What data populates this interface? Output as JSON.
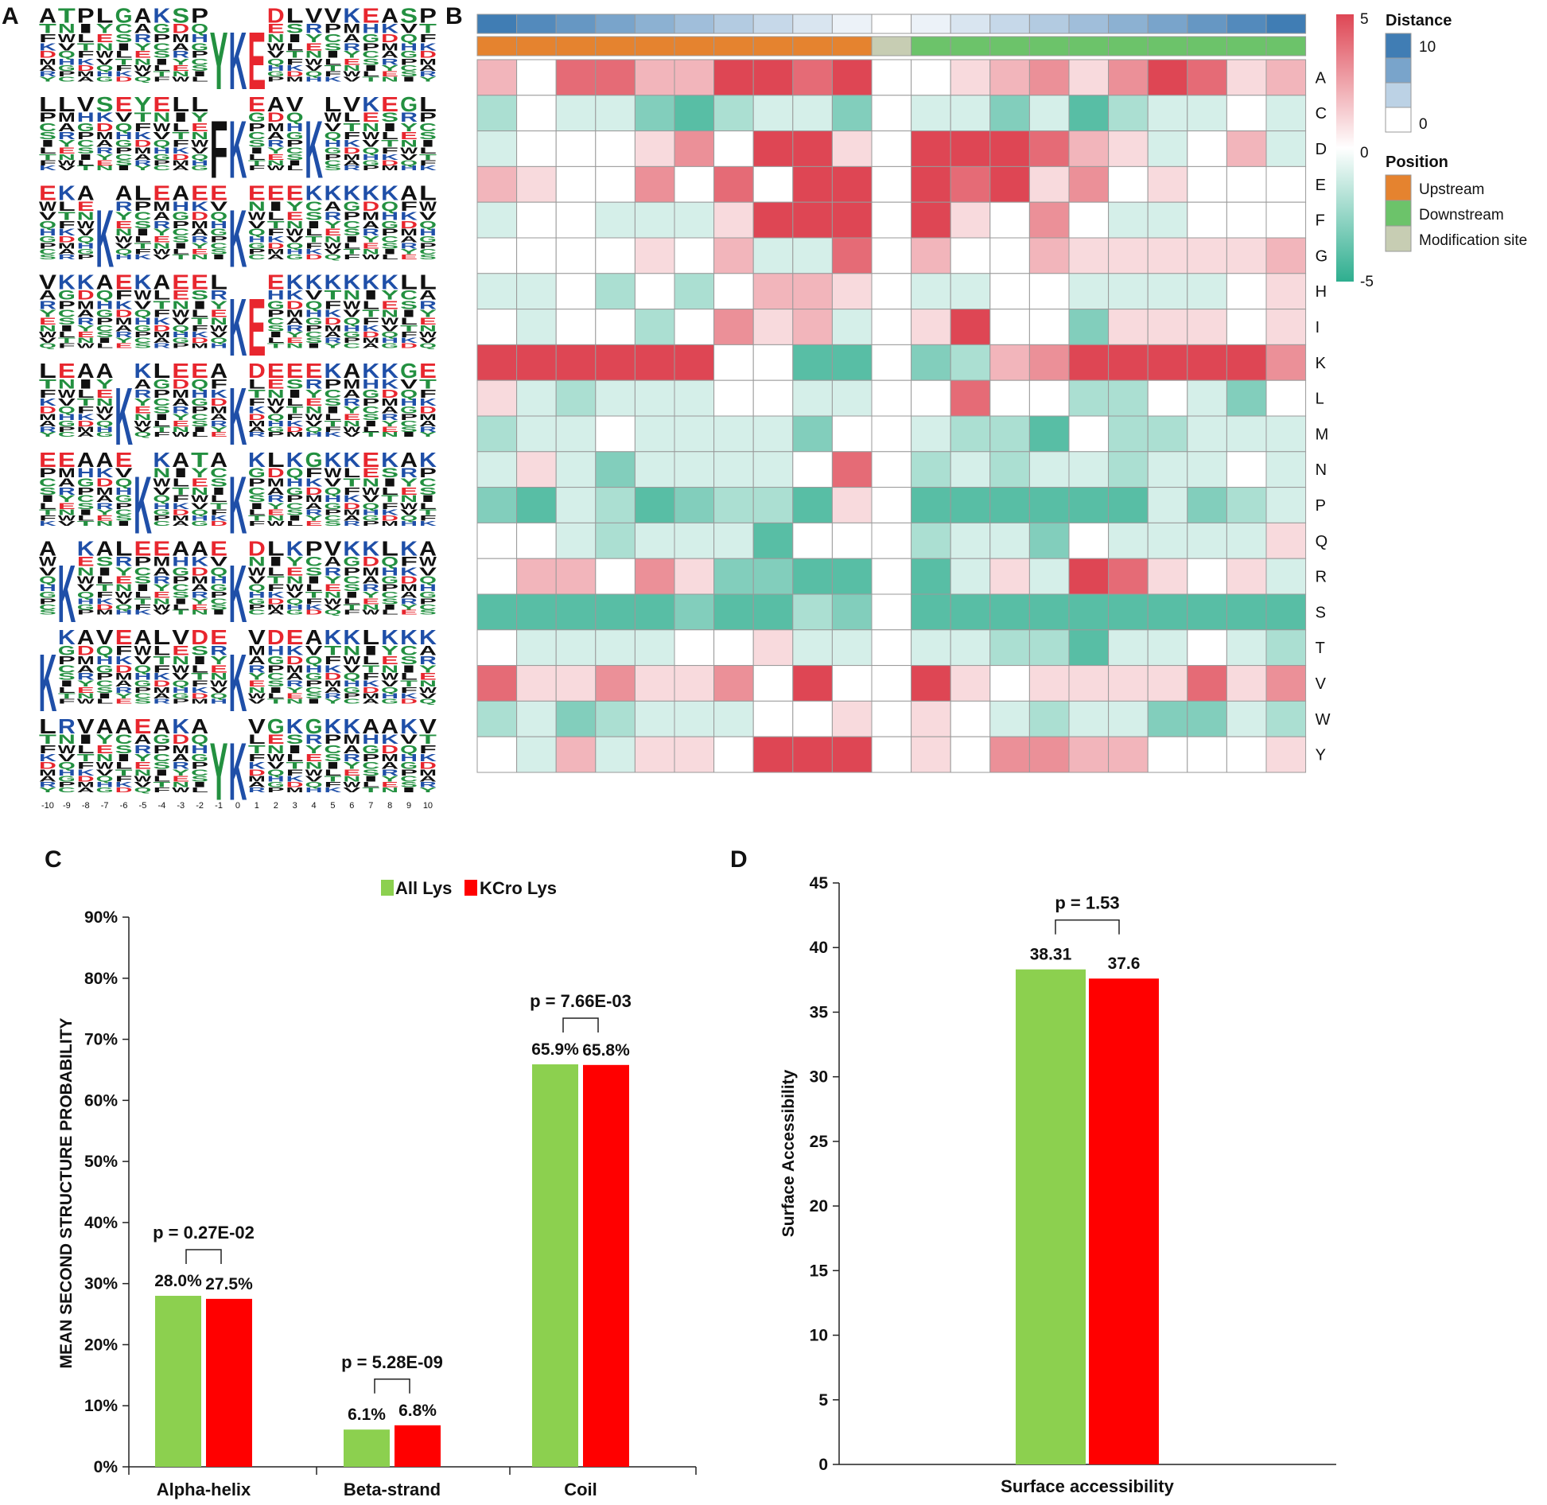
{
  "panels": {
    "A": "A",
    "B": "B",
    "C": "C",
    "D": "D"
  },
  "colors": {
    "green": "#8cd04f",
    "red": "#ff0000",
    "upstream": "#e5832f",
    "downstream": "#6cc36a",
    "modsite": "#c7cdb3",
    "teal": "#2eae8f",
    "heatred": "#de4654"
  },
  "chart_data": [
    {
      "panel": "A",
      "type": "sequence_logo",
      "x_ticks": [
        "-10",
        "-9",
        "-8",
        "-7",
        "-6",
        "-5",
        "-4",
        "-3",
        "-2",
        "-1",
        "0",
        "1",
        "2",
        "3",
        "4",
        "5",
        "6",
        "7",
        "8",
        "9",
        "10"
      ],
      "motifs": [
        {
          "top": "ATPLGAKSPVKEDLVVKEASP",
          "big": [
            9,
            10,
            11
          ],
          "big_letters": [
            "Y",
            "K",
            "E"
          ]
        },
        {
          "top": "LLVSEYELLFKEAVPLVKEG",
          "big": [
            9,
            10,
            14
          ],
          "big_letters": [
            "F",
            "K",
            "K"
          ]
        },
        {
          "top": "EKAKALEAEEKEEEKKKKKA",
          "big": [
            3,
            10
          ],
          "big_letters": [
            "K",
            "K"
          ]
        },
        {
          "top": "VKKAEKAEELEEEKKKKKKL",
          "big": [
            10,
            11
          ],
          "big_letters": [
            "K",
            "E"
          ]
        },
        {
          "top": "LEAALKLEEAKDEEEKAKKGE",
          "big": [
            4,
            10
          ],
          "big_letters": [
            "K",
            "K"
          ]
        },
        {
          "top": "EEAAEKKATAEKLKGKKEKAK",
          "big": [
            5,
            10
          ],
          "big_letters": [
            "K",
            "K"
          ]
        },
        {
          "top": "AEKALEEAAEKDLKPVKKLKA",
          "big": [
            1,
            10
          ],
          "big_letters": [
            "K",
            "K"
          ]
        },
        {
          "top": "AKAVEALVDEKVDEAKKLKKK",
          "big": [
            0,
            10
          ],
          "big_letters": [
            "K",
            "K"
          ]
        },
        {
          "top": "LRVAAEAKAYKVGKGKKAAKV",
          "big": [
            9,
            10
          ],
          "big_letters": [
            "Y",
            "K"
          ]
        }
      ]
    },
    {
      "panel": "B",
      "type": "heatmap",
      "rows": [
        "A",
        "C",
        "D",
        "E",
        "F",
        "G",
        "H",
        "I",
        "K",
        "L",
        "M",
        "N",
        "P",
        "Q",
        "R",
        "S",
        "T",
        "V",
        "W",
        "Y"
      ],
      "positions": [
        -10,
        -9,
        -8,
        -7,
        -6,
        -5,
        -4,
        -3,
        -2,
        -1,
        0,
        1,
        2,
        3,
        4,
        5,
        6,
        7,
        8,
        9,
        10
      ],
      "distance": [
        10,
        9,
        8,
        7,
        6,
        5,
        4,
        3,
        2,
        1,
        0,
        1,
        2,
        3,
        4,
        5,
        6,
        7,
        8,
        9,
        10
      ],
      "position_class": [
        "Upstream",
        "Upstream",
        "Upstream",
        "Upstream",
        "Upstream",
        "Upstream",
        "Upstream",
        "Upstream",
        "Upstream",
        "Upstream",
        "Modification site",
        "Downstream",
        "Downstream",
        "Downstream",
        "Downstream",
        "Downstream",
        "Downstream",
        "Downstream",
        "Downstream",
        "Downstream",
        "Downstream"
      ],
      "values": [
        [
          2,
          0,
          4,
          4,
          2,
          2,
          5,
          5,
          4,
          5,
          0,
          0,
          1,
          2,
          3,
          1,
          3,
          5,
          4,
          1,
          2
        ],
        [
          -2,
          0,
          -1,
          -1,
          -3,
          -4,
          -2,
          -1,
          -1,
          -3,
          0,
          -1,
          -1,
          -3,
          -1,
          -4,
          -2,
          -1,
          -1,
          0,
          -1
        ],
        [
          -1,
          0,
          0,
          0,
          1,
          3,
          0,
          5,
          5,
          1,
          0,
          5,
          5,
          5,
          4,
          2,
          1,
          -1,
          0,
          2,
          -1
        ],
        [
          2,
          1,
          0,
          0,
          3,
          0,
          4,
          0,
          5,
          5,
          0,
          5,
          4,
          5,
          1,
          3,
          0,
          1,
          0,
          0,
          0
        ],
        [
          -1,
          0,
          0,
          -1,
          -1,
          -1,
          1,
          5,
          5,
          5,
          0,
          5,
          1,
          0,
          3,
          0,
          -1,
          -1,
          0,
          0,
          0
        ],
        [
          0,
          0,
          0,
          0,
          1,
          0,
          2,
          -1,
          -1,
          4,
          0,
          2,
          0,
          0,
          2,
          1,
          1,
          1,
          1,
          1,
          2
        ],
        [
          -1,
          -1,
          0,
          -2,
          0,
          -2,
          0,
          2,
          2,
          1,
          0,
          -1,
          -1,
          0,
          0,
          -1,
          -1,
          -1,
          -1,
          0,
          1
        ],
        [
          0,
          -1,
          0,
          0,
          -2,
          0,
          3,
          1,
          2,
          -1,
          0,
          1,
          5,
          0,
          0,
          -3,
          1,
          1,
          1,
          0,
          1
        ],
        [
          5,
          5,
          5,
          5,
          5,
          5,
          0,
          0,
          -4,
          -4,
          0,
          -3,
          -2,
          2,
          3,
          5,
          5,
          5,
          5,
          5,
          3
        ],
        [
          1,
          -1,
          -2,
          -1,
          -1,
          -1,
          0,
          0,
          -1,
          -1,
          0,
          0,
          4,
          0,
          0,
          -2,
          -2,
          0,
          -1,
          -3,
          0
        ],
        [
          -2,
          -1,
          -1,
          0,
          -1,
          -1,
          -1,
          -1,
          -3,
          0,
          0,
          -1,
          -2,
          -2,
          -4,
          0,
          -2,
          -2,
          -1,
          -1,
          -1
        ],
        [
          -1,
          1,
          -1,
          -3,
          -1,
          -1,
          -1,
          -1,
          0,
          4,
          0,
          -2,
          -1,
          -2,
          -1,
          -1,
          -2,
          -1,
          -1,
          0,
          -1
        ],
        [
          -3,
          -4,
          -1,
          -2,
          -4,
          -3,
          -2,
          -2,
          -4,
          1,
          0,
          -4,
          -4,
          -4,
          -4,
          -4,
          -4,
          -1,
          -3,
          -2,
          -1
        ],
        [
          0,
          0,
          -1,
          -2,
          -1,
          -1,
          -1,
          -4,
          0,
          0,
          0,
          -2,
          -1,
          -1,
          -3,
          0,
          -1,
          -1,
          -1,
          -1,
          1
        ],
        [
          0,
          2,
          2,
          0,
          3,
          1,
          -3,
          -3,
          -4,
          -4,
          0,
          -4,
          -1,
          1,
          -1,
          5,
          4,
          1,
          0,
          1,
          -1
        ],
        [
          -4,
          -4,
          -4,
          -4,
          -4,
          -3,
          -4,
          -4,
          -2,
          -3,
          0,
          -4,
          -4,
          -4,
          -4,
          -4,
          -4,
          -4,
          -4,
          -4,
          -4
        ],
        [
          0,
          -1,
          -1,
          -1,
          -1,
          0,
          0,
          1,
          -1,
          -1,
          0,
          -1,
          -1,
          -2,
          -2,
          -4,
          -1,
          -1,
          0,
          -1,
          -2
        ],
        [
          4,
          1,
          1,
          3,
          1,
          1,
          3,
          0,
          5,
          0,
          0,
          5,
          1,
          0,
          1,
          1,
          1,
          1,
          4,
          1,
          3
        ],
        [
          -2,
          -1,
          -3,
          -2,
          -1,
          -1,
          -1,
          0,
          0,
          1,
          0,
          1,
          0,
          -1,
          -2,
          -1,
          -1,
          -3,
          -3,
          -1,
          -2
        ],
        [
          0,
          -1,
          2,
          -1,
          1,
          1,
          0,
          5,
          5,
          5,
          0,
          1,
          0,
          3,
          3,
          2,
          2,
          0,
          0,
          0,
          1
        ]
      ],
      "scale_ticks": [
        "5",
        "0",
        "-5"
      ],
      "legend": {
        "distance_title": "Distance",
        "distance_ticks": [
          "10",
          "0"
        ],
        "position_title": "Position",
        "position_items": [
          "Upstream",
          "Downstream",
          "Modification site"
        ]
      }
    },
    {
      "panel": "C",
      "type": "bar",
      "ylabel": "MEAN SECOND STRUCTURE PROBABILITY",
      "ylim": [
        0,
        90
      ],
      "y_ticks": [
        "0%",
        "10%",
        "20%",
        "30%",
        "40%",
        "50%",
        "60%",
        "70%",
        "80%",
        "90%"
      ],
      "categories": [
        "Alpha-helix",
        "Beta-strand",
        "Coil"
      ],
      "series": [
        {
          "name": "All Lys",
          "values": [
            28.0,
            6.1,
            65.9
          ],
          "labels": [
            "28.0%",
            "6.1%",
            "65.9%"
          ]
        },
        {
          "name": "KCro Lys",
          "values": [
            27.5,
            6.8,
            65.8
          ],
          "labels": [
            "27.5%",
            "6.8%",
            "65.8%"
          ]
        }
      ],
      "pvalues": [
        "p = 0.27E-02",
        "p = 5.28E-09",
        "p = 7.66E-03"
      ],
      "legend": [
        "All Lys",
        "KCro Lys"
      ],
      "legend_position": "top-center"
    },
    {
      "panel": "D",
      "type": "bar",
      "ylabel": "Surface Accessibility",
      "xlabel": "Surface accessibility",
      "ylim": [
        0,
        45
      ],
      "y_ticks": [
        "0",
        "5",
        "10",
        "15",
        "20",
        "25",
        "30",
        "35",
        "40",
        "45"
      ],
      "categories": [
        "Surface accessibility"
      ],
      "series": [
        {
          "name": "All Lys",
          "values": [
            38.31
          ],
          "labels": [
            "38.31"
          ]
        },
        {
          "name": "KCro Lys",
          "values": [
            37.6
          ],
          "labels": [
            "37.6"
          ]
        }
      ],
      "pvalues": [
        "p = 1.53"
      ]
    }
  ]
}
